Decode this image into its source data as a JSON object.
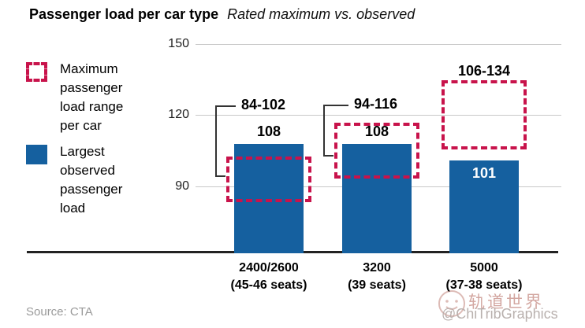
{
  "header": {
    "title": "Passenger load per car type",
    "subtitle": "Rated maximum vs. observed"
  },
  "legend": {
    "max_range_label": "Maximum passenger load range per car",
    "observed_label": "Largest observed passenger load"
  },
  "chart_data": {
    "type": "bar",
    "title": "Passenger load per car type",
    "subtitle": "Rated maximum vs. observed",
    "categories": [
      "2400/2600",
      "3200",
      "5000"
    ],
    "category_seat_labels": [
      "(45-46 seats)",
      "(39 seats)",
      "(37-38 seats)"
    ],
    "series": [
      {
        "name": "Largest observed passenger load",
        "type": "bar",
        "values": [
          108,
          108,
          101
        ],
        "value_labels": [
          "108",
          "108",
          "101"
        ],
        "value_label_inside": [
          false,
          false,
          true
        ],
        "color": "#15609f"
      },
      {
        "name": "Maximum passenger load range per car",
        "type": "range-box",
        "ranges": [
          [
            84,
            102
          ],
          [
            94,
            116
          ],
          [
            106,
            134
          ]
        ],
        "labels": [
          "84-102",
          "94-116",
          "106-134"
        ],
        "color": "#c8134b"
      }
    ],
    "yticks": [
      150,
      120,
      90
    ],
    "ylim": [
      62,
      150
    ],
    "grid": true,
    "legend_position": "left"
  },
  "footer": {
    "source": "Source: CTA"
  },
  "watermark": {
    "cn": "轨道世界",
    "handle": "@ChiTribGraphics"
  },
  "colors": {
    "bar_blue": "#15609f",
    "range_red": "#c8134b",
    "grid": "#c8c8c8",
    "axis": "#222222",
    "value_label_inside": "#ffffff",
    "source_gray": "#9a9a9a"
  }
}
